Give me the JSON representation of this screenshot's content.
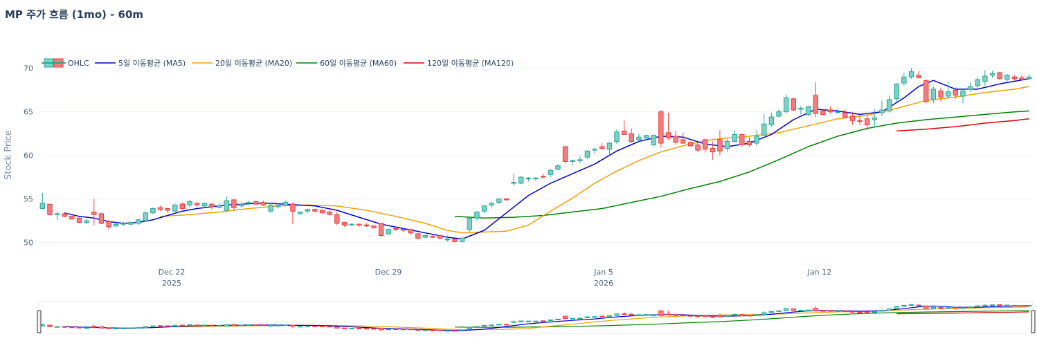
{
  "chart_data": {
    "type": "candlestick",
    "title": "MP 주가 흐름 (1mo) - 60m",
    "ylabel": "Stock Price",
    "xlabel": "",
    "ylim": [
      48.3,
      71.8
    ],
    "yticks": [
      50,
      55,
      60,
      65,
      70
    ],
    "xticks": [
      {
        "label": "Dec 22",
        "sub": "2025",
        "x": 7
      },
      {
        "label": "Dec 29",
        "sub": "",
        "x": 35
      },
      {
        "label": "Jan 5",
        "sub": "2026",
        "x": 63
      },
      {
        "label": "Jan 12",
        "sub": "",
        "x": 91
      }
    ],
    "x_range": [
      -0.5,
      128.5
    ],
    "legend": {
      "placement": "top-left",
      "entries": [
        "OHLC",
        "5일 이동평균 (MA5)",
        "20일 이동평균 (MA20)",
        "60일 이동평균 (MA60)",
        "120일 이동평균 (MA120)"
      ]
    },
    "colors": {
      "up": "#26a69a",
      "up_fill": "#7fd1c3",
      "down": "#ef3b3b",
      "down_fill": "#f08080",
      "ma5": "#0000cc",
      "ma20": "#f5a000",
      "ma60": "#008000",
      "ma120": "#dd0000"
    },
    "ohlc": [
      [
        0,
        53.9,
        55.7,
        53.9,
        54.5
      ],
      [
        1,
        54.4,
        54.4,
        53.1,
        53.2
      ],
      [
        2,
        53.2,
        53.6,
        52.6,
        53.3
      ],
      [
        3,
        53.3,
        53.3,
        52.9,
        53.0
      ],
      [
        4,
        53.0,
        53.1,
        52.6,
        52.7
      ],
      [
        5,
        52.8,
        52.9,
        52.2,
        52.3
      ],
      [
        6,
        52.3,
        52.7,
        52.1,
        52.5
      ],
      [
        7,
        53.5,
        55.0,
        52.0,
        53.2
      ],
      [
        8,
        53.3,
        53.4,
        52.1,
        52.2
      ],
      [
        9,
        52.4,
        52.6,
        51.5,
        51.8
      ],
      [
        10,
        51.9,
        52.3,
        51.7,
        52.1
      ],
      [
        11,
        52.1,
        52.4,
        51.9,
        52.2
      ],
      [
        12,
        52.1,
        52.4,
        52.0,
        52.3
      ],
      [
        13,
        52.2,
        52.7,
        52.0,
        52.6
      ],
      [
        14,
        52.5,
        53.6,
        52.4,
        53.4
      ],
      [
        15,
        53.4,
        54.0,
        53.3,
        53.9
      ],
      [
        16,
        54.0,
        54.2,
        53.6,
        53.8
      ],
      [
        17,
        53.9,
        54.0,
        53.4,
        53.7
      ],
      [
        18,
        53.6,
        54.5,
        53.5,
        54.3
      ],
      [
        19,
        54.4,
        54.6,
        53.8,
        53.9
      ],
      [
        20,
        54.3,
        54.9,
        54.0,
        54.7
      ],
      [
        21,
        54.5,
        54.7,
        54.1,
        54.3
      ],
      [
        22,
        54.2,
        54.6,
        54.0,
        54.5
      ],
      [
        23,
        54.4,
        54.5,
        53.8,
        54.1
      ],
      [
        24,
        54.0,
        54.5,
        53.9,
        54.2
      ],
      [
        25,
        53.7,
        55.3,
        53.5,
        54.8
      ],
      [
        26,
        54.9,
        54.9,
        53.7,
        54.0
      ],
      [
        27,
        54.2,
        54.6,
        54.0,
        54.4
      ],
      [
        28,
        54.5,
        54.8,
        54.3,
        54.6
      ],
      [
        29,
        54.7,
        54.8,
        54.3,
        54.4
      ],
      [
        30,
        54.6,
        54.8,
        54.2,
        54.3
      ],
      [
        31,
        53.6,
        54.4,
        53.4,
        54.3
      ],
      [
        32,
        54.1,
        54.5,
        53.9,
        54.3
      ],
      [
        33,
        54.3,
        54.8,
        54.2,
        54.6
      ],
      [
        34,
        54.4,
        54.6,
        52.1,
        53.6
      ],
      [
        35,
        53.3,
        53.6,
        53.2,
        53.5
      ],
      [
        36,
        53.6,
        53.9,
        53.4,
        53.8
      ],
      [
        37,
        53.8,
        53.9,
        53.5,
        53.6
      ],
      [
        38,
        53.7,
        53.8,
        53.3,
        53.4
      ],
      [
        39,
        53.5,
        53.7,
        53.1,
        53.2
      ],
      [
        40,
        53.2,
        53.5,
        52.0,
        52.2
      ],
      [
        41,
        52.3,
        52.4,
        51.8,
        52.0
      ],
      [
        42,
        52.0,
        52.2,
        51.9,
        52.1
      ],
      [
        43,
        52.1,
        52.2,
        51.8,
        52.0
      ],
      [
        44,
        52.0,
        52.2,
        51.8,
        51.9
      ],
      [
        45,
        51.9,
        52.0,
        51.6,
        51.7
      ],
      [
        46,
        52.2,
        52.2,
        50.6,
        50.8
      ],
      [
        47,
        51.0,
        51.6,
        50.9,
        51.5
      ],
      [
        48,
        51.6,
        51.8,
        51.3,
        51.5
      ],
      [
        49,
        51.5,
        51.7,
        51.2,
        51.4
      ],
      [
        50,
        51.5,
        51.6,
        50.9,
        51.1
      ],
      [
        51,
        51.0,
        51.1,
        50.3,
        50.5
      ],
      [
        52,
        50.6,
        50.9,
        50.5,
        50.8
      ],
      [
        53,
        50.7,
        50.9,
        50.5,
        50.6
      ],
      [
        54,
        50.8,
        50.9,
        50.4,
        50.5
      ],
      [
        55,
        50.3,
        50.8,
        50.1,
        50.4
      ],
      [
        56,
        50.4,
        50.5,
        50.0,
        50.1
      ],
      [
        57,
        50.1,
        50.6,
        50.0,
        50.5
      ],
      [
        58,
        51.5,
        53.0,
        51.2,
        52.8
      ],
      [
        59,
        52.8,
        53.6,
        52.5,
        53.5
      ],
      [
        60,
        53.6,
        54.3,
        53.4,
        54.2
      ],
      [
        61,
        54.3,
        54.7,
        53.9,
        54.5
      ],
      [
        62,
        54.6,
        55.1,
        54.4,
        55.0
      ],
      [
        63,
        55.0,
        55.1,
        54.8,
        54.9
      ],
      [
        64,
        56.8,
        57.9,
        56.5,
        56.9
      ],
      [
        65,
        56.8,
        57.6,
        56.7,
        57.5
      ],
      [
        66,
        57.3,
        57.5,
        57.0,
        57.4
      ],
      [
        67,
        57.3,
        57.5,
        57.1,
        57.4
      ],
      [
        68,
        57.6,
        57.9,
        57.3,
        57.5
      ],
      [
        69,
        57.8,
        58.4,
        57.5,
        58.3
      ],
      [
        70,
        58.4,
        59.0,
        58.3,
        58.8
      ],
      [
        71,
        61.0,
        61.1,
        59.1,
        59.3
      ],
      [
        72,
        59.3,
        59.5,
        58.9,
        59.4
      ],
      [
        73,
        59.4,
        59.9,
        59.1,
        59.5
      ],
      [
        74,
        59.8,
        60.6,
        59.6,
        60.5
      ],
      [
        75,
        60.6,
        60.9,
        60.2,
        60.7
      ],
      [
        76,
        61.0,
        61.4,
        60.6,
        60.8
      ],
      [
        77,
        60.7,
        61.5,
        60.0,
        61.4
      ],
      [
        78,
        61.6,
        63.0,
        61.3,
        62.7
      ],
      [
        79,
        62.8,
        64.0,
        62.4,
        62.4
      ],
      [
        80,
        62.5,
        63.1,
        61.4,
        61.6
      ],
      [
        81,
        61.8,
        62.5,
        61.5,
        62.1
      ],
      [
        82,
        62.0,
        62.4,
        61.7,
        62.3
      ],
      [
        83,
        61.2,
        62.4,
        61.0,
        62.3
      ],
      [
        84,
        65.0,
        65.2,
        60.9,
        61.4
      ],
      [
        85,
        62.6,
        64.9,
        61.8,
        62.0
      ],
      [
        86,
        62.2,
        62.8,
        61.2,
        61.5
      ],
      [
        87,
        61.8,
        62.6,
        61.3,
        61.4
      ],
      [
        88,
        61.5,
        61.6,
        61.0,
        61.1
      ],
      [
        89,
        61.2,
        61.5,
        60.4,
        60.6
      ],
      [
        90,
        61.8,
        61.9,
        60.3,
        60.7
      ],
      [
        91,
        60.8,
        61.6,
        59.5,
        60.4
      ],
      [
        92,
        61.8,
        62.9,
        60.0,
        60.5
      ],
      [
        93,
        60.8,
        61.9,
        60.4,
        61.6
      ],
      [
        94,
        61.6,
        62.9,
        61.5,
        62.4
      ],
      [
        95,
        62.4,
        62.5,
        61.0,
        61.2
      ],
      [
        96,
        61.6,
        62.1,
        61.0,
        61.2
      ],
      [
        97,
        61.4,
        62.9,
        61.1,
        62.2
      ],
      [
        98,
        62.3,
        64.8,
        62.2,
        63.6
      ],
      [
        99,
        63.5,
        64.9,
        63.3,
        64.4
      ],
      [
        100,
        64.5,
        65.3,
        64.3,
        65.0
      ],
      [
        101,
        65.0,
        67.0,
        64.8,
        66.6
      ],
      [
        102,
        66.5,
        66.6,
        65.1,
        65.2
      ],
      [
        103,
        65.3,
        65.7,
        64.7,
        65.4
      ],
      [
        104,
        64.7,
        65.7,
        64.5,
        65.6
      ],
      [
        105,
        66.9,
        68.4,
        64.4,
        64.8
      ],
      [
        106,
        65.1,
        65.3,
        64.6,
        64.7
      ],
      [
        107,
        65.2,
        65.6,
        64.8,
        65.0
      ],
      [
        108,
        64.9,
        65.3,
        64.8,
        65.0
      ],
      [
        109,
        64.9,
        65.3,
        64.3,
        64.4
      ],
      [
        110,
        64.5,
        65.0,
        63.5,
        64.0
      ],
      [
        111,
        64.0,
        64.7,
        63.5,
        63.9
      ],
      [
        112,
        64.2,
        64.9,
        62.9,
        63.5
      ],
      [
        113,
        64.1,
        65.3,
        63.2,
        64.3
      ],
      [
        114,
        64.9,
        66.3,
        64.5,
        65.2
      ],
      [
        115,
        65.1,
        66.9,
        64.9,
        66.4
      ],
      [
        116,
        66.5,
        68.3,
        66.1,
        68.2
      ],
      [
        117,
        68.3,
        69.5,
        68.0,
        69.0
      ],
      [
        118,
        69.0,
        70.0,
        68.8,
        69.6
      ],
      [
        119,
        69.2,
        69.7,
        68.8,
        68.9
      ],
      [
        120,
        68.6,
        68.7,
        66.0,
        66.2
      ],
      [
        121,
        66.4,
        67.9,
        66.0,
        67.6
      ],
      [
        122,
        67.4,
        67.8,
        66.2,
        66.7
      ],
      [
        123,
        66.8,
        68.5,
        66.5,
        67.3
      ],
      [
        124,
        67.5,
        67.8,
        66.5,
        66.9
      ],
      [
        125,
        66.8,
        67.6,
        66.0,
        67.4
      ],
      [
        126,
        67.6,
        68.4,
        67.3,
        67.9
      ],
      [
        127,
        68.0,
        69.0,
        67.5,
        68.7
      ],
      [
        128,
        68.5,
        69.8,
        68.0,
        69.1
      ],
      [
        129,
        69.2,
        69.7,
        68.9,
        69.4
      ],
      [
        130,
        69.5,
        69.6,
        68.7,
        68.8
      ],
      [
        131,
        68.7,
        69.4,
        68.5,
        69.2
      ],
      [
        132,
        69.0,
        69.2,
        68.6,
        68.8
      ],
      [
        133,
        68.9,
        69.2,
        68.5,
        68.7
      ],
      [
        134,
        68.8,
        69.3,
        68.7,
        69.0
      ]
    ],
    "ma5": [
      [
        3,
        53.4
      ],
      [
        5,
        53.0
      ],
      [
        7,
        52.8
      ],
      [
        9,
        52.4
      ],
      [
        11,
        52.2
      ],
      [
        13,
        52.3
      ],
      [
        15,
        52.6
      ],
      [
        17,
        53.1
      ],
      [
        19,
        53.6
      ],
      [
        21,
        53.9
      ],
      [
        23,
        54.1
      ],
      [
        25,
        54.3
      ],
      [
        27,
        54.4
      ],
      [
        29,
        54.5
      ],
      [
        31,
        54.5
      ],
      [
        33,
        54.4
      ],
      [
        37,
        54.2
      ],
      [
        40,
        53.7
      ],
      [
        43,
        52.9
      ],
      [
        46,
        52.1
      ],
      [
        49,
        51.6
      ],
      [
        52,
        51.1
      ],
      [
        55,
        50.6
      ],
      [
        57,
        50.4
      ],
      [
        60,
        51.4
      ],
      [
        63,
        53.4
      ],
      [
        66,
        55.4
      ],
      [
        69,
        56.8
      ],
      [
        72,
        57.9
      ],
      [
        75,
        59.0
      ],
      [
        78,
        60.5
      ],
      [
        81,
        61.6
      ],
      [
        84,
        62.2
      ],
      [
        87,
        62.1
      ],
      [
        90,
        61.3
      ],
      [
        93,
        61.0
      ],
      [
        96,
        61.4
      ],
      [
        99,
        62.4
      ],
      [
        102,
        64.1
      ],
      [
        105,
        65.3
      ],
      [
        108,
        65.1
      ],
      [
        111,
        64.7
      ],
      [
        114,
        65.0
      ],
      [
        117,
        66.6
      ],
      [
        119,
        67.9
      ],
      [
        121,
        68.6
      ],
      [
        124,
        67.6
      ],
      [
        127,
        67.6
      ],
      [
        130,
        68.2
      ],
      [
        134,
        68.8
      ]
    ],
    "ma20": [
      [
        16,
        53.0
      ],
      [
        20,
        53.2
      ],
      [
        24,
        53.5
      ],
      [
        28,
        53.9
      ],
      [
        32,
        54.2
      ],
      [
        36,
        54.3
      ],
      [
        40,
        54.2
      ],
      [
        44,
        53.7
      ],
      [
        48,
        53.0
      ],
      [
        52,
        52.2
      ],
      [
        55,
        51.4
      ],
      [
        57,
        51.1
      ],
      [
        60,
        51.2
      ],
      [
        63,
        51.3
      ],
      [
        66,
        52.0
      ],
      [
        69,
        53.6
      ],
      [
        72,
        55.1
      ],
      [
        75,
        56.8
      ],
      [
        78,
        58.2
      ],
      [
        81,
        59.4
      ],
      [
        84,
        60.4
      ],
      [
        87,
        61.1
      ],
      [
        90,
        61.7
      ],
      [
        93,
        62.0
      ],
      [
        96,
        62.2
      ],
      [
        100,
        62.6
      ],
      [
        104,
        63.4
      ],
      [
        108,
        64.2
      ],
      [
        112,
        64.6
      ],
      [
        116,
        65.4
      ],
      [
        120,
        66.3
      ],
      [
        124,
        66.7
      ],
      [
        128,
        67.2
      ],
      [
        132,
        67.6
      ],
      [
        134,
        67.9
      ]
    ],
    "ma60": [
      [
        56,
        53.0
      ],
      [
        60,
        52.8
      ],
      [
        64,
        52.9
      ],
      [
        68,
        53.1
      ],
      [
        72,
        53.5
      ],
      [
        76,
        53.9
      ],
      [
        80,
        54.6
      ],
      [
        84,
        55.3
      ],
      [
        88,
        56.2
      ],
      [
        92,
        57.0
      ],
      [
        96,
        58.1
      ],
      [
        100,
        59.5
      ],
      [
        104,
        61.0
      ],
      [
        108,
        62.2
      ],
      [
        112,
        63.1
      ],
      [
        116,
        63.7
      ],
      [
        120,
        64.1
      ],
      [
        124,
        64.4
      ],
      [
        128,
        64.7
      ],
      [
        132,
        65.0
      ],
      [
        134,
        65.1
      ]
    ],
    "ma120": [
      [
        116,
        62.8
      ],
      [
        120,
        63.0
      ],
      [
        124,
        63.3
      ],
      [
        128,
        63.7
      ],
      [
        132,
        64.0
      ],
      [
        134,
        64.2
      ]
    ]
  }
}
